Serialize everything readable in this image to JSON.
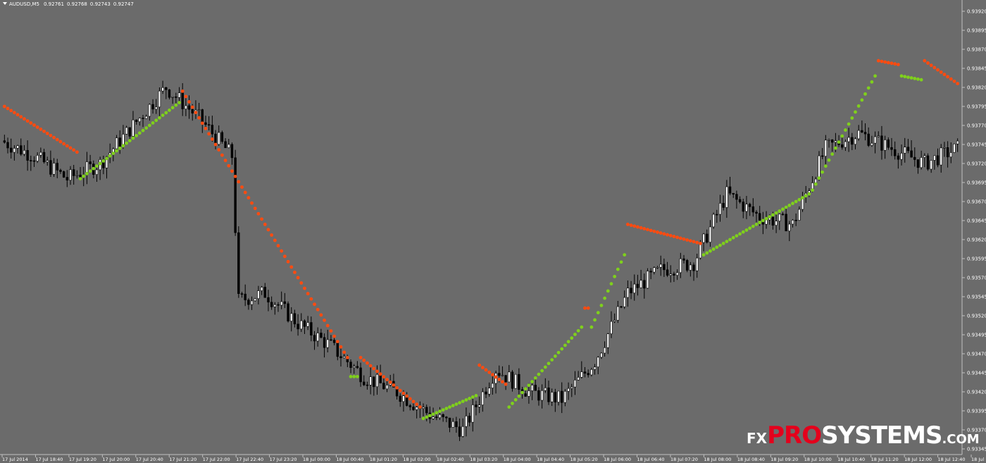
{
  "header": {
    "symbol": "AUDUSD,M5",
    "quotes": [
      "0.92761",
      "0.92768",
      "0.92743",
      "0.92747"
    ]
  },
  "watermark": {
    "fx": "FX",
    "pro": "PRO",
    "systems": "SYSTEMS",
    "com": ".COM"
  },
  "colors": {
    "background": "#6b6b6b",
    "axis": "#c0c0c0",
    "candle_up": "#ffffff",
    "candle_down": "#000000",
    "sar_bearish": "#ff4b10",
    "sar_bullish": "#7fd01c",
    "watermark_accent": "#e4001c"
  },
  "chart_data": {
    "type": "candlestick",
    "indicator": "Parabolic SAR",
    "ylim": [
      0.9332,
      0.9392
    ],
    "y_ticks": [
      "0.93920",
      "0.93895",
      "0.93870",
      "0.93845",
      "0.93820",
      "0.93795",
      "0.93770",
      "0.93745",
      "0.93720",
      "0.93695",
      "0.93670",
      "0.93645",
      "0.93620",
      "0.93595",
      "0.93570",
      "0.93545",
      "0.93520",
      "0.93495",
      "0.93470",
      "0.93445",
      "0.93420",
      "0.93395",
      "0.93370",
      "0.93345"
    ],
    "x_ticks": [
      "17 Jul 2014",
      "17 Jul 18:40",
      "17 Jul 19:20",
      "17 Jul 20:00",
      "17 Jul 20:40",
      "17 Jul 21:20",
      "17 Jul 22:00",
      "17 Jul 22:40",
      "17 Jul 23:20",
      "18 Jul 00:00",
      "18 Jul 00:40",
      "18 Jul 01:20",
      "18 Jul 02:00",
      "18 Jul 02:40",
      "18 Jul 03:20",
      "18 Jul 04:00",
      "18 Jul 04:40",
      "18 Jul 05:20",
      "18 Jul 06:00",
      "18 Jul 06:40",
      "18 Jul 07:20",
      "18 Jul 08:00",
      "18 Jul 08:40",
      "18 Jul 09:20",
      "18 Jul 10:00",
      "18 Jul 10:40",
      "18 Jul 11:20",
      "18 Jul 12:00",
      "18 Jul 12:40",
      "18 Jul 13:20"
    ],
    "bar_count": 290,
    "close_path": [
      [
        0,
        0.9375
      ],
      [
        10,
        0.9373
      ],
      [
        20,
        0.937
      ],
      [
        30,
        0.9372
      ],
      [
        40,
        0.9377
      ],
      [
        50,
        0.9382
      ],
      [
        60,
        0.9378
      ],
      [
        70,
        0.9373
      ],
      [
        72,
        0.9354
      ],
      [
        80,
        0.9355
      ],
      [
        90,
        0.9351
      ],
      [
        100,
        0.9348
      ],
      [
        110,
        0.9344
      ],
      [
        120,
        0.9342
      ],
      [
        130,
        0.9339
      ],
      [
        140,
        0.9337
      ],
      [
        150,
        0.9345
      ],
      [
        160,
        0.9342
      ],
      [
        170,
        0.9341
      ],
      [
        180,
        0.9346
      ],
      [
        190,
        0.9355
      ],
      [
        200,
        0.9358
      ],
      [
        210,
        0.9359
      ],
      [
        220,
        0.9368
      ],
      [
        230,
        0.9365
      ],
      [
        240,
        0.9364
      ],
      [
        250,
        0.9374
      ],
      [
        260,
        0.9376
      ],
      [
        280,
        0.9372
      ],
      [
        290,
        0.9374
      ]
    ],
    "sar_segments": [
      {
        "trend": "bearish",
        "from": 0,
        "to": 22,
        "start": 0.93795,
        "end": 0.93735
      },
      {
        "trend": "bullish",
        "from": 23,
        "to": 53,
        "start": 0.937,
        "end": 0.938
      },
      {
        "trend": "bearish",
        "from": 54,
        "to": 104,
        "start": 0.93815,
        "end": 0.93465
      },
      {
        "trend": "bullish",
        "from": 105,
        "to": 107,
        "start": 0.9344,
        "end": 0.9344
      },
      {
        "trend": "bearish",
        "from": 108,
        "to": 126,
        "start": 0.93465,
        "end": 0.934
      },
      {
        "trend": "bullish",
        "from": 127,
        "to": 143,
        "start": 0.93385,
        "end": 0.93415
      },
      {
        "trend": "bearish",
        "from": 144,
        "to": 152,
        "start": 0.93455,
        "end": 0.9343
      },
      {
        "trend": "bullish",
        "from": 153,
        "to": 175,
        "start": 0.934,
        "end": 0.93505
      },
      {
        "trend": "bearish",
        "from": 176,
        "to": 177,
        "start": 0.9353,
        "end": 0.9353
      },
      {
        "trend": "bullish",
        "from": 178,
        "to": 188,
        "start": 0.93505,
        "end": 0.936
      },
      {
        "trend": "bearish",
        "from": 189,
        "to": 211,
        "start": 0.9364,
        "end": 0.93615
      },
      {
        "trend": "bullish",
        "from": 212,
        "to": 244,
        "start": 0.936,
        "end": 0.9368
      },
      {
        "trend": "bullish",
        "from": 245,
        "to": 264,
        "start": 0.93685,
        "end": 0.93835
      },
      {
        "trend": "bearish",
        "from": 265,
        "to": 271,
        "start": 0.93855,
        "end": 0.9385
      },
      {
        "trend": "bullish",
        "from": 272,
        "to": 278,
        "start": 0.93835,
        "end": 0.9383
      },
      {
        "trend": "bearish",
        "from": 279,
        "to": 289,
        "start": 0.93855,
        "end": 0.93825
      }
    ]
  }
}
